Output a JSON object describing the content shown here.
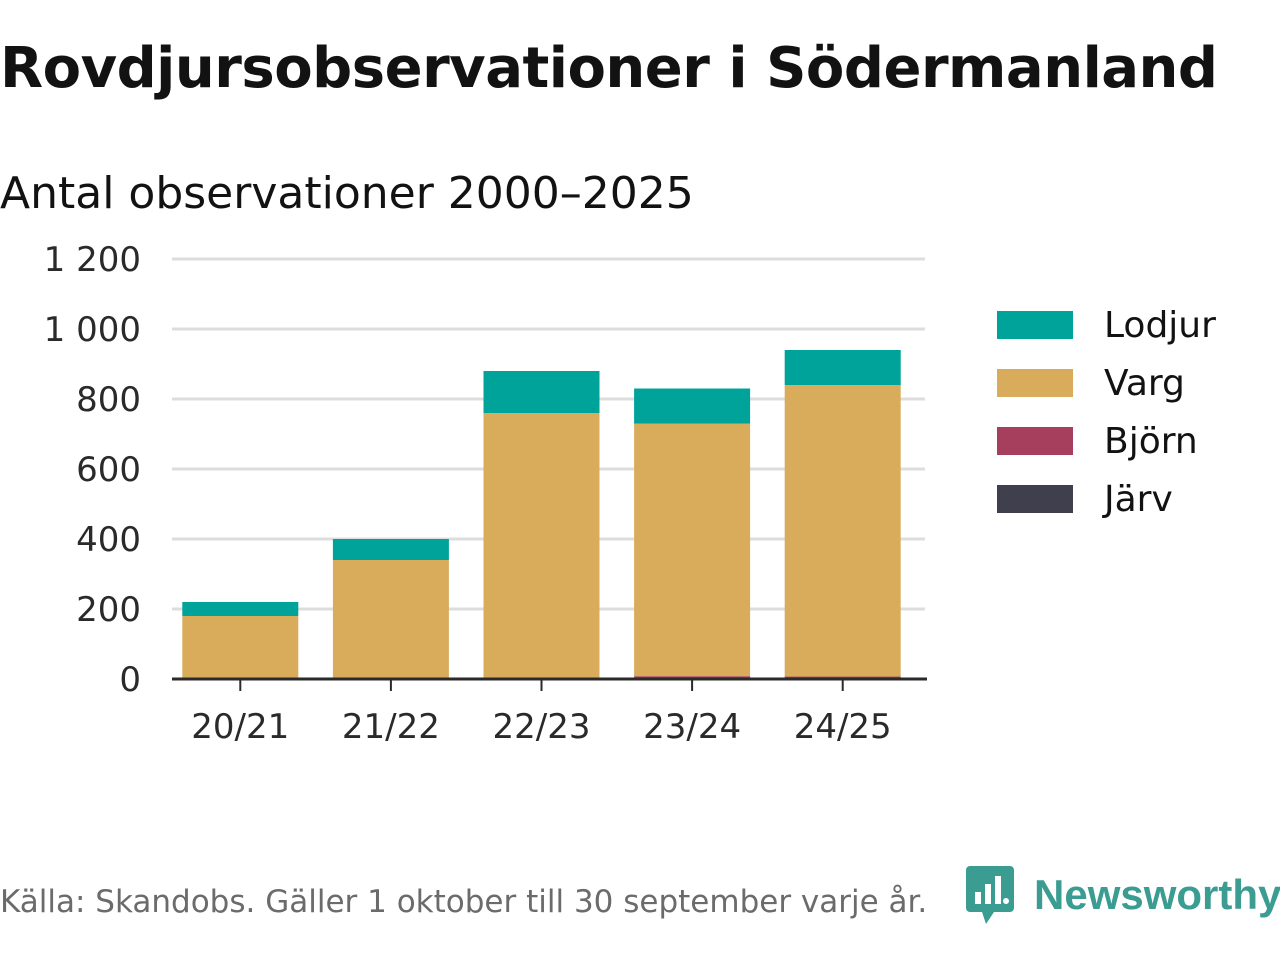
{
  "header": {
    "title": "Rovdjursobservationer i Södermanland",
    "subtitle": "Antal observationer 2000–2025"
  },
  "footer": {
    "source": "Källa: Skandobs. Gäller 1 oktober till 30 september varje år."
  },
  "brand": {
    "name": "Newsworthy",
    "icon": "newsworthy-logo-icon",
    "color": "#3b9c91"
  },
  "colors": {
    "Lodjur": "#00a39a",
    "Varg": "#d9ac5b",
    "Björn": "#a63e5d",
    "Järv": "#3f3f4d",
    "grid": "#dddddd",
    "axis": "#2a2a2a"
  },
  "chart_data": {
    "type": "bar",
    "stacked": true,
    "categories": [
      "20/21",
      "21/22",
      "22/23",
      "23/24",
      "24/25"
    ],
    "series": [
      {
        "name": "Järv",
        "values": [
          0,
          0,
          0,
          0,
          0
        ]
      },
      {
        "name": "Björn",
        "values": [
          2,
          1,
          3,
          8,
          7
        ]
      },
      {
        "name": "Varg",
        "values": [
          178,
          339,
          757,
          722,
          833
        ]
      },
      {
        "name": "Lodjur",
        "values": [
          40,
          60,
          120,
          100,
          100
        ]
      }
    ],
    "legend_order": [
      "Lodjur",
      "Varg",
      "Björn",
      "Järv"
    ],
    "y_ticks": [
      "0",
      "200",
      "400",
      "600",
      "800",
      "1 000",
      "1 200"
    ],
    "ylim": [
      0,
      1200
    ],
    "grid": true,
    "legend_position": "right"
  }
}
